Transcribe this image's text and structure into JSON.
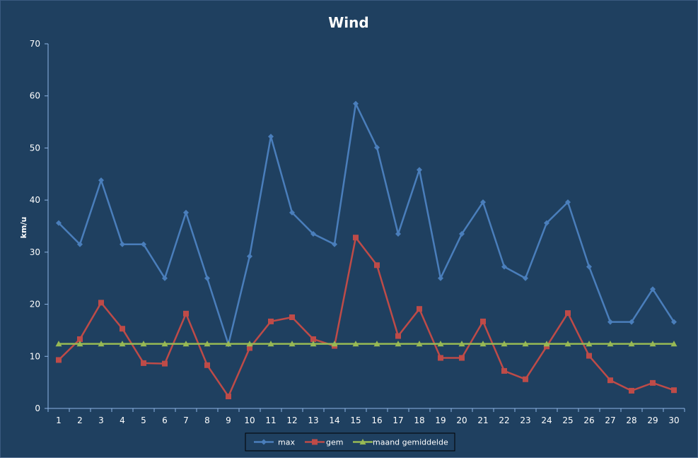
{
  "chart_data": {
    "type": "line",
    "title": "Wind",
    "xlabel": "",
    "ylabel": "km/u",
    "ylim": [
      0,
      70
    ],
    "yticks": [
      0,
      10,
      20,
      30,
      40,
      50,
      60,
      70
    ],
    "x": [
      1,
      2,
      3,
      4,
      5,
      6,
      7,
      8,
      9,
      10,
      11,
      12,
      13,
      14,
      15,
      16,
      17,
      18,
      19,
      20,
      21,
      22,
      23,
      24,
      25,
      26,
      27,
      28,
      29,
      30
    ],
    "grid": false,
    "legend_position": "bottom",
    "background": "#1f4060",
    "series": [
      {
        "name": "max",
        "color": "#4a7ebb",
        "marker": "diamond",
        "values": [
          35.6,
          31.5,
          43.8,
          31.5,
          31.5,
          25.0,
          37.6,
          25.0,
          12.3,
          29.2,
          52.2,
          37.6,
          33.5,
          31.5,
          58.5,
          50.1,
          33.5,
          45.8,
          25.0,
          33.5,
          39.6,
          27.2,
          25.0,
          35.6,
          39.6,
          27.2,
          16.6,
          16.6,
          22.9,
          16.6
        ]
      },
      {
        "name": "gem",
        "color": "#be4b48",
        "marker": "square",
        "values": [
          9.3,
          13.3,
          20.3,
          15.3,
          8.7,
          8.6,
          18.2,
          8.3,
          2.3,
          11.6,
          16.7,
          17.5,
          13.3,
          12.0,
          32.8,
          27.5,
          13.9,
          19.1,
          9.7,
          9.7,
          16.7,
          7.2,
          5.6,
          11.9,
          18.3,
          10.1,
          5.4,
          3.4,
          4.9,
          3.5
        ]
      },
      {
        "name": "maand gemiddelde",
        "color": "#98b954",
        "marker": "triangle",
        "values": [
          12.4,
          12.4,
          12.4,
          12.4,
          12.4,
          12.4,
          12.4,
          12.4,
          12.4,
          12.4,
          12.4,
          12.4,
          12.4,
          12.4,
          12.4,
          12.4,
          12.4,
          12.4,
          12.4,
          12.4,
          12.4,
          12.4,
          12.4,
          12.4,
          12.4,
          12.4,
          12.4,
          12.4,
          12.4,
          12.4
        ]
      }
    ]
  }
}
